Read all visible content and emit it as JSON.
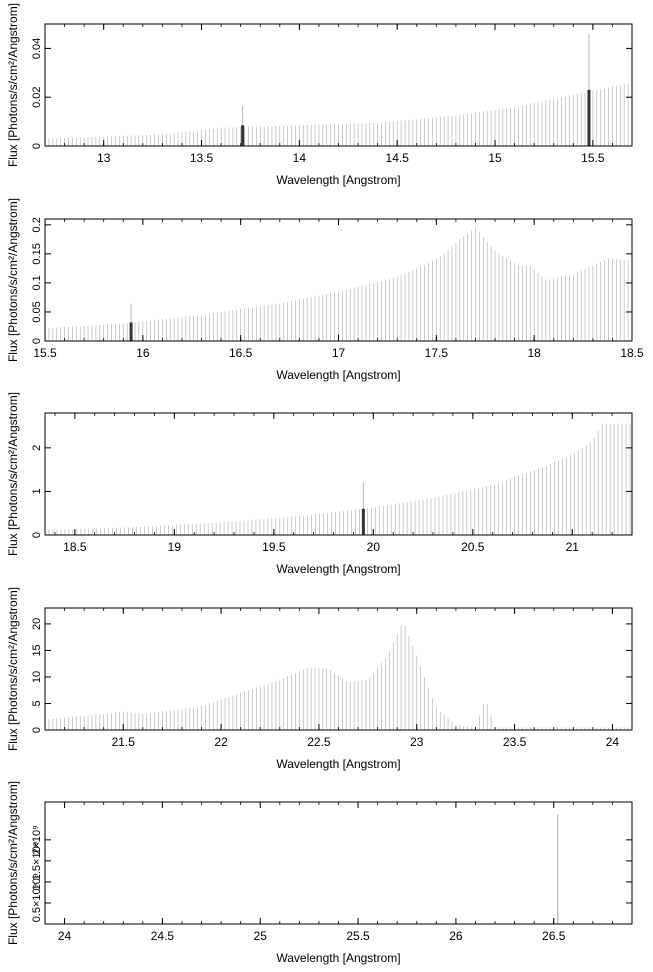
{
  "chart_data": [
    {
      "type": "bar",
      "xlabel": "Wavelength [Angstrom]",
      "ylabel": "Flux [Photons/s/cm²/Angstrom]",
      "xlim": [
        12.7,
        15.7
      ],
      "ylim": [
        0,
        0.05
      ],
      "xticks": [
        {
          "v": 13,
          "label": "13"
        },
        {
          "v": 13.5,
          "label": "13.5"
        },
        {
          "v": 14,
          "label": "14"
        },
        {
          "v": 14.5,
          "label": "14.5"
        },
        {
          "v": 15,
          "label": "15"
        },
        {
          "v": 15.5,
          "label": "15.5"
        }
      ],
      "yticks": [
        {
          "v": 0,
          "label": "0"
        },
        {
          "v": 0.02,
          "label": "0.02"
        },
        {
          "v": 0.04,
          "label": "0.04"
        }
      ],
      "bin_width": 0.02,
      "points": [
        [
          12.7,
          0.003
        ],
        [
          13.0,
          0.0038
        ],
        [
          13.3,
          0.0048
        ],
        [
          13.6,
          0.0075
        ],
        [
          14.0,
          0.0085
        ],
        [
          14.4,
          0.0095
        ],
        [
          14.8,
          0.0125
        ],
        [
          15.1,
          0.016
        ],
        [
          15.4,
          0.021
        ],
        [
          15.7,
          0.026
        ]
      ],
      "highlights": [
        {
          "x": 13.71,
          "y": 0.0085,
          "err": 0.008
        },
        {
          "x": 15.48,
          "y": 0.023,
          "err": 0.023
        }
      ]
    },
    {
      "type": "bar",
      "xlabel": "Wavelength [Angstrom]",
      "ylabel": "Flux [Photons/s/cm²/Angstrom]",
      "xlim": [
        15.5,
        18.5
      ],
      "ylim": [
        0,
        0.21
      ],
      "xticks": [
        {
          "v": 15.5,
          "label": "15.5"
        },
        {
          "v": 16,
          "label": "16"
        },
        {
          "v": 16.5,
          "label": "16.5"
        },
        {
          "v": 17,
          "label": "17"
        },
        {
          "v": 17.5,
          "label": "17.5"
        },
        {
          "v": 18,
          "label": "18"
        },
        {
          "v": 18.5,
          "label": "18.5"
        }
      ],
      "yticks": [
        {
          "v": 0,
          "label": "0"
        },
        {
          "v": 0.05,
          "label": "0.05"
        },
        {
          "v": 0.1,
          "label": "0.1"
        },
        {
          "v": 0.15,
          "label": "0.15"
        },
        {
          "v": 0.2,
          "label": "0.2"
        }
      ],
      "bin_width": 0.02,
      "points": [
        [
          15.5,
          0.022
        ],
        [
          15.9,
          0.03
        ],
        [
          16.3,
          0.045
        ],
        [
          16.7,
          0.065
        ],
        [
          17.0,
          0.085
        ],
        [
          17.3,
          0.11
        ],
        [
          17.5,
          0.14
        ],
        [
          17.62,
          0.175
        ],
        [
          17.7,
          0.195
        ],
        [
          17.8,
          0.155
        ],
        [
          17.92,
          0.13
        ],
        [
          17.98,
          0.13
        ],
        [
          18.06,
          0.105
        ],
        [
          18.2,
          0.115
        ],
        [
          18.38,
          0.142
        ],
        [
          18.5,
          0.138
        ]
      ],
      "highlights": [
        {
          "x": 15.94,
          "y": 0.032,
          "err": 0.032
        }
      ]
    },
    {
      "type": "bar",
      "xlabel": "Wavelength [Angstrom]",
      "ylabel": "Flux [Photons/s/cm²/Angstrom]",
      "xlim": [
        18.35,
        21.3
      ],
      "ylim": [
        0,
        2.8
      ],
      "xticks": [
        {
          "v": 18.5,
          "label": "18.5"
        },
        {
          "v": 19,
          "label": "19"
        },
        {
          "v": 19.5,
          "label": "19.5"
        },
        {
          "v": 20,
          "label": "20"
        },
        {
          "v": 20.5,
          "label": "20.5"
        },
        {
          "v": 21,
          "label": "21"
        }
      ],
      "yticks": [
        {
          "v": 0,
          "label": "0"
        },
        {
          "v": 1,
          "label": "1"
        },
        {
          "v": 2,
          "label": "2"
        }
      ],
      "bin_width": 0.02,
      "points": [
        [
          18.35,
          0.12
        ],
        [
          18.8,
          0.18
        ],
        [
          19.2,
          0.28
        ],
        [
          19.6,
          0.42
        ],
        [
          19.95,
          0.6
        ],
        [
          20.3,
          0.85
        ],
        [
          20.6,
          1.15
        ],
        [
          20.85,
          1.55
        ],
        [
          21.0,
          1.85
        ],
        [
          21.1,
          2.15
        ],
        [
          21.15,
          2.55
        ],
        [
          21.3,
          2.55
        ]
      ],
      "highlights": [
        {
          "x": 19.95,
          "y": 0.6,
          "err": 0.6
        }
      ]
    },
    {
      "type": "bar",
      "xlabel": "Wavelength [Angstrom]",
      "ylabel": "Flux [Photons/s/cm²/Angstrom]",
      "xlim": [
        21.1,
        24.1
      ],
      "ylim": [
        0,
        23
      ],
      "xticks": [
        {
          "v": 21.5,
          "label": "21.5"
        },
        {
          "v": 22,
          "label": "22"
        },
        {
          "v": 22.5,
          "label": "22.5"
        },
        {
          "v": 23,
          "label": "23"
        },
        {
          "v": 23.5,
          "label": "23.5"
        },
        {
          "v": 24,
          "label": "24"
        }
      ],
      "yticks": [
        {
          "v": 0,
          "label": "0"
        },
        {
          "v": 5,
          "label": "5"
        },
        {
          "v": 10,
          "label": "10"
        },
        {
          "v": 15,
          "label": "15"
        },
        {
          "v": 20,
          "label": "20"
        }
      ],
      "bin_width": 0.02,
      "points": [
        [
          21.1,
          2.0
        ],
        [
          21.4,
          3.0
        ],
        [
          21.5,
          3.5
        ],
        [
          21.6,
          3.0
        ],
        [
          21.9,
          4.5
        ],
        [
          22.1,
          7.0
        ],
        [
          22.3,
          9.5
        ],
        [
          22.45,
          11.8
        ],
        [
          22.55,
          11.5
        ],
        [
          22.65,
          9.0
        ],
        [
          22.75,
          9.5
        ],
        [
          22.85,
          14.0
        ],
        [
          22.93,
          20.5
        ],
        [
          23.0,
          14.0
        ],
        [
          23.1,
          4.0
        ],
        [
          23.2,
          1.0
        ],
        [
          23.3,
          0.5
        ],
        [
          23.35,
          6.0
        ],
        [
          23.4,
          0.5
        ],
        [
          24.1,
          0.5
        ]
      ],
      "highlights": []
    },
    {
      "type": "bar",
      "xlabel": "Wavelength [Angstrom]",
      "ylabel": "Flux [Photons/s/cm²/Angstrom]",
      "xlim": [
        23.9,
        26.9
      ],
      "ylim": [
        0,
        2900000000.0
      ],
      "xticks": [
        {
          "v": 24,
          "label": "24"
        },
        {
          "v": 24.5,
          "label": "24.5"
        },
        {
          "v": 25,
          "label": "25"
        },
        {
          "v": 25.5,
          "label": "25.5"
        },
        {
          "v": 26,
          "label": "26"
        },
        {
          "v": 26.5,
          "label": "26.5"
        }
      ],
      "yticks": [
        {
          "v": 500000000.0,
          "label": "0.5×10⁹"
        },
        {
          "v": 1000000000.0,
          "label": "10⁹"
        },
        {
          "v": 1500000000.0,
          "label": "1.5×10⁹"
        },
        {
          "v": 2000000000.0,
          "label": "2×10⁹"
        }
      ],
      "bin_width": 0.02,
      "points": [],
      "spikes": [
        {
          "x": 26.5,
          "y": 140000000.0
        },
        {
          "x": 26.52,
          "y": 2600000000.0
        }
      ],
      "highlights": []
    }
  ]
}
